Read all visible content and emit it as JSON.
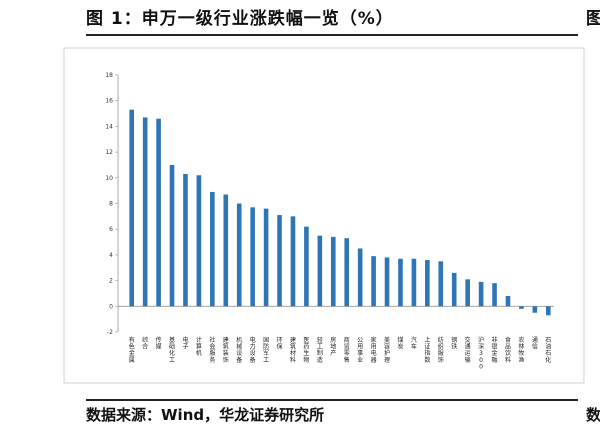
{
  "header": {
    "title": "图 1：申万一级行业涨跌幅一览（%）",
    "cut_right": "图"
  },
  "footer": {
    "source": "数据来源：Wind，华龙证券研究所",
    "cut_right": "数"
  },
  "colors": {
    "bar": "#2e75b6",
    "axis": "#999999"
  },
  "chart_data": {
    "type": "bar",
    "title": "",
    "xlabel": "",
    "ylabel": "",
    "ylim": [
      -2,
      18
    ],
    "yticks": [
      -2,
      0,
      2,
      4,
      6,
      8,
      10,
      12,
      14,
      16,
      18
    ],
    "categories": [
      "有色金属",
      "综合",
      "传媒",
      "基础化工",
      "电子",
      "计算机",
      "社会服务",
      "建筑装饰",
      "机械设备",
      "电力设备",
      "国防军工",
      "环保",
      "建筑材料",
      "医药生物",
      "轻工制造",
      "房地产",
      "商贸零售",
      "公用事业",
      "家用电器",
      "美容护理",
      "煤炭",
      "汽车",
      "上证指数",
      "纺织服饰",
      "钢铁",
      "交通运输",
      "沪深300",
      "非银金融",
      "食品饮料",
      "农林牧渔",
      "通信",
      "石油石化"
    ],
    "values": [
      15.3,
      14.7,
      14.6,
      11.0,
      10.3,
      10.2,
      8.9,
      8.7,
      8.0,
      7.7,
      7.6,
      7.1,
      7.0,
      6.2,
      5.5,
      5.4,
      5.3,
      4.5,
      3.9,
      3.8,
      3.7,
      3.7,
      3.6,
      3.5,
      2.6,
      2.1,
      1.9,
      1.8,
      0.8,
      -0.2,
      -0.5,
      -0.7
    ]
  }
}
